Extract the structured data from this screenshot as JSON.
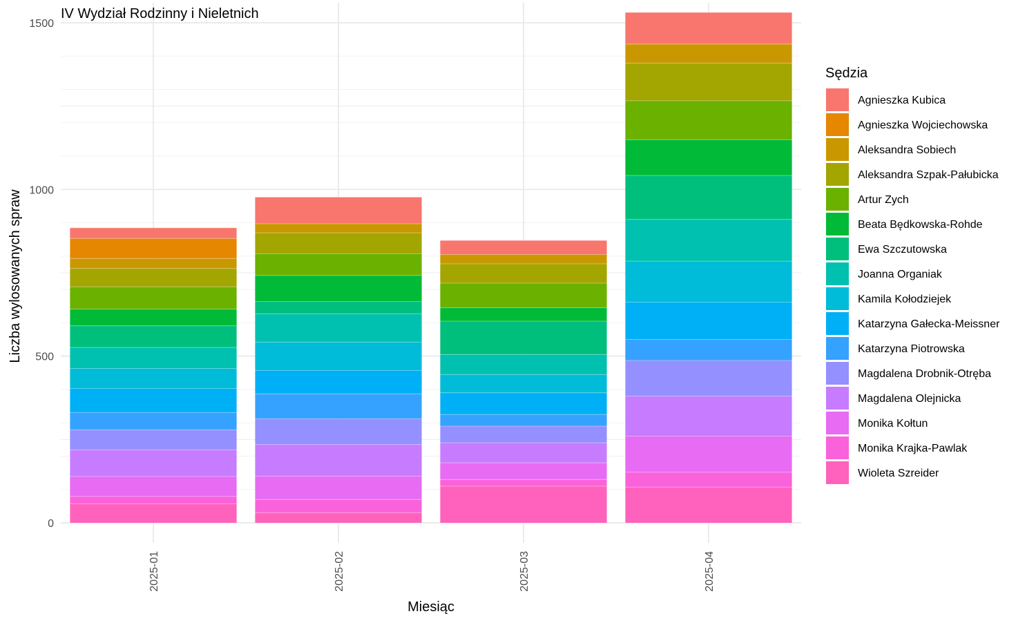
{
  "chart_data": {
    "type": "bar",
    "stacked": true,
    "title": "IV Wydział Rodzinny i Nieletnich",
    "xlabel": "Miesiąc",
    "ylabel": "Liczba wylosowanych spraw",
    "categories": [
      "2025-01",
      "2025-02",
      "2025-03",
      "2025-04"
    ],
    "ylim": [
      -60,
      1560
    ],
    "yticks": [
      0,
      500,
      1000,
      1500
    ],
    "grid": true,
    "legend_title": "Sędzia",
    "legend_position": "right",
    "series": [
      {
        "name": "Agnieszka Kubica",
        "color": "#F8766D",
        "values": [
          32,
          80,
          42,
          95
        ]
      },
      {
        "name": "Agnieszka Wojciechowska",
        "color": "#E58700",
        "values": [
          60,
          0,
          0,
          0
        ]
      },
      {
        "name": "Aleksandra Sobiech",
        "color": "#C99800",
        "values": [
          30,
          27,
          28,
          57
        ]
      },
      {
        "name": "Aleksandra Szpak-Pałubicka",
        "color": "#A3A500",
        "values": [
          55,
          63,
          58,
          113
        ]
      },
      {
        "name": "Artur Zych",
        "color": "#6BB100",
        "values": [
          67,
          65,
          74,
          117
        ]
      },
      {
        "name": "Beata Będkowska-Rohde",
        "color": "#00BA38",
        "values": [
          50,
          78,
          40,
          107
        ]
      },
      {
        "name": "Ewa Szczutowska",
        "color": "#00BF7D",
        "values": [
          65,
          37,
          100,
          132
        ]
      },
      {
        "name": "Joanna Organiak",
        "color": "#00C0AF",
        "values": [
          63,
          85,
          60,
          125
        ]
      },
      {
        "name": "Kamila Kołodziejek",
        "color": "#00BCD8",
        "values": [
          60,
          85,
          55,
          123
        ]
      },
      {
        "name": "Katarzyna Gałecka-Meissner",
        "color": "#00B0F6",
        "values": [
          72,
          70,
          65,
          112
        ]
      },
      {
        "name": "Katarzyna Piotrowska",
        "color": "#35A2FF",
        "values": [
          52,
          75,
          35,
          63
        ]
      },
      {
        "name": "Magdalena Drobnik-Otręba",
        "color": "#9590FF",
        "values": [
          60,
          77,
          50,
          107
        ]
      },
      {
        "name": "Magdalena Olejnicka",
        "color": "#C77CFF",
        "values": [
          80,
          95,
          60,
          120
        ]
      },
      {
        "name": "Monika Kołtun",
        "color": "#E76BF3",
        "values": [
          60,
          70,
          50,
          108
        ]
      },
      {
        "name": "Monika Krajka-Pawlak",
        "color": "#FA62DB",
        "values": [
          22,
          40,
          20,
          45
        ]
      },
      {
        "name": "Wioleta Szreider",
        "color": "#FF62BC",
        "values": [
          57,
          30,
          110,
          107
        ]
      }
    ]
  }
}
